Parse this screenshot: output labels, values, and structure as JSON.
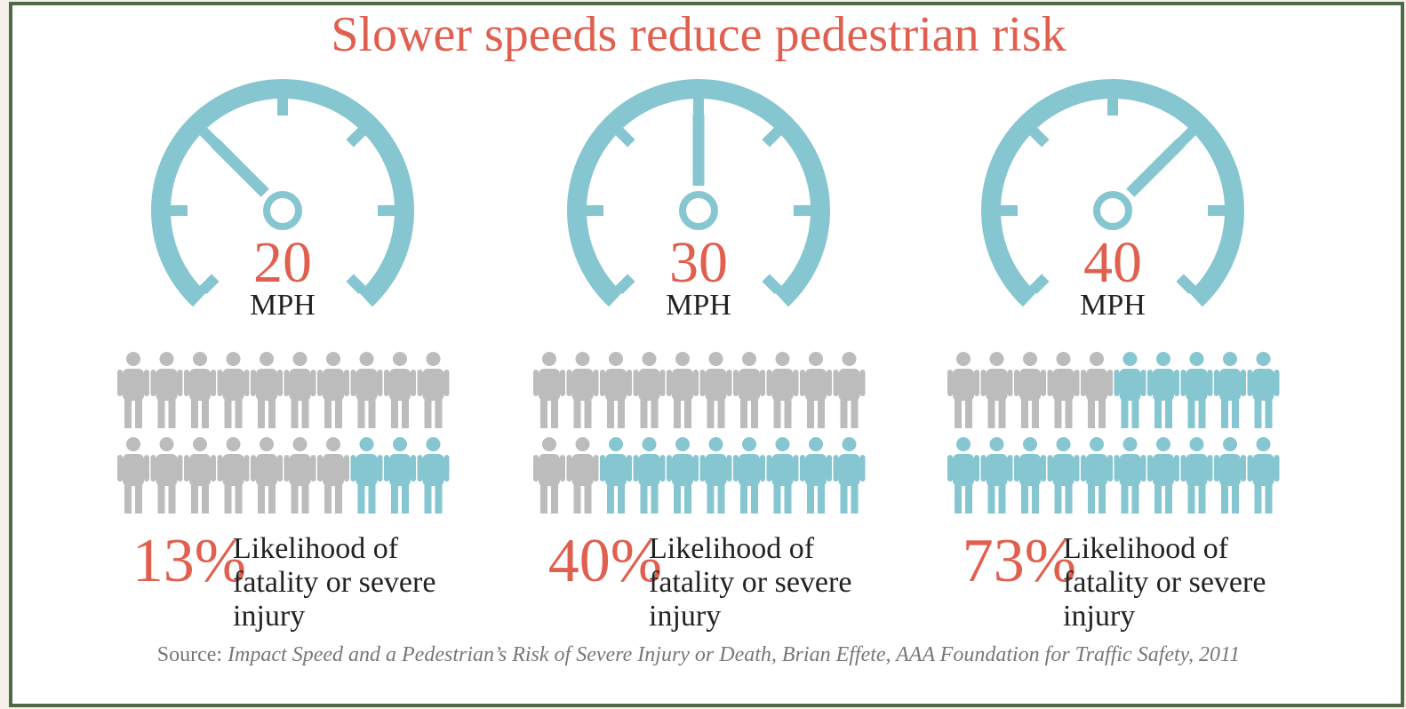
{
  "title": "Slower speeds reduce pedestrian risk",
  "panels": [
    {
      "speed": "20",
      "unit": "MPH",
      "percent": "13%",
      "description": [
        "Likelihood of",
        "fatality or severe",
        "injury"
      ]
    },
    {
      "speed": "30",
      "unit": "MPH",
      "percent": "40%",
      "description": [
        "Likelihood of",
        "fatality or severe",
        "injury"
      ]
    },
    {
      "speed": "40",
      "unit": "MPH",
      "percent": "73%",
      "description": [
        "Likelihood of",
        "fatality or severe",
        "injury"
      ]
    }
  ],
  "source": {
    "label": "Source:",
    "citation": "Impact Speed and a Pedestrian’s Risk of  Severe Injury or Death, Brian Effete, AAA Foundation for Traffic Safety, 2011"
  }
}
